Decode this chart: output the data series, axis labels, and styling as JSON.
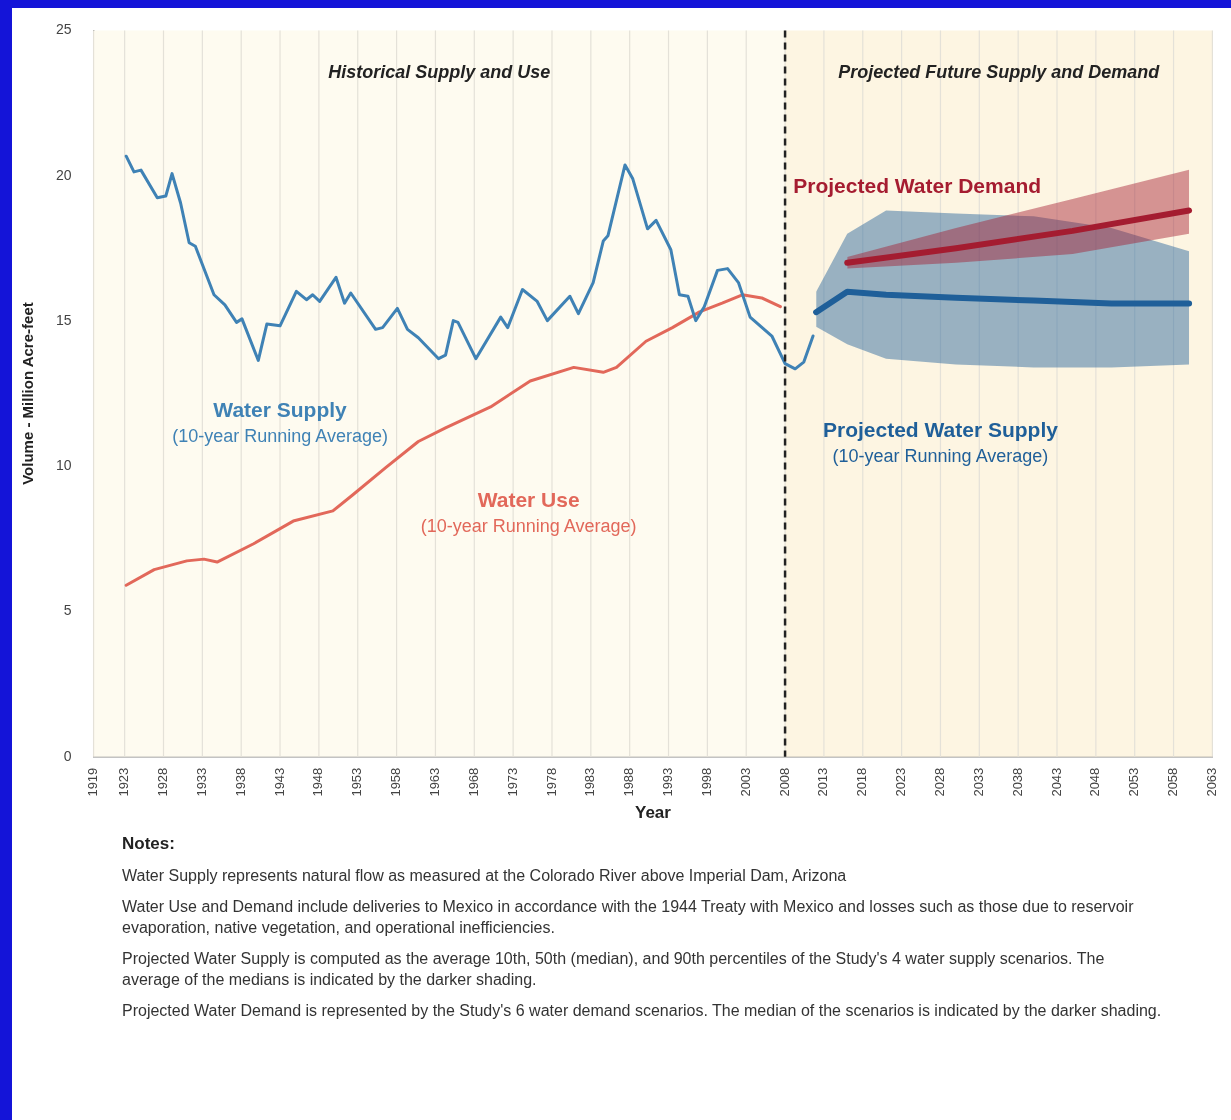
{
  "chart_data": {
    "type": "line",
    "xlabel": "Year",
    "ylabel": "Volume - Million Acre-feet",
    "xlim": [
      1919,
      2063
    ],
    "xticks": [
      1919,
      1923,
      1928,
      1933,
      1938,
      1943,
      1948,
      1953,
      1958,
      1963,
      1968,
      1973,
      1978,
      1983,
      1988,
      1993,
      1998,
      2003,
      2008,
      2013,
      2018,
      2023,
      2028,
      2033,
      2038,
      2043,
      2048,
      2053,
      2058,
      2063
    ],
    "ylim": [
      0,
      25
    ],
    "yticks": [
      0,
      5,
      10,
      15,
      20,
      25
    ],
    "grid": "x",
    "legend": false,
    "series": [
      {
        "name": "Water Supply",
        "color": "#3f82b5",
        "x": [
          1923.2,
          1924.2,
          1925.1,
          1927.2,
          1928.3,
          1929.1,
          1930.2,
          1931.3,
          1932.1,
          1934.5,
          1935.9,
          1937.4,
          1938.1,
          1940.2,
          1941.3,
          1943.0,
          1945.1,
          1946.4,
          1947.2,
          1948.1,
          1950.2,
          1951.3,
          1952.1,
          1955.3,
          1956.2,
          1958.1,
          1959.4,
          1960.8,
          1963.4,
          1964.3,
          1965.3,
          1965.9,
          1968.2,
          1971.4,
          1972.3,
          1974.2,
          1976.1,
          1977.4,
          1980.3,
          1981.4,
          1983.3,
          1984.6,
          1985.2,
          1987.4,
          1988.4,
          1990.3,
          1991.4,
          1993.3,
          1994.4,
          1995.5,
          1996.5,
          1997.6,
          1999.3,
          2000.6,
          2002.0,
          2003.5,
          2006.3,
          2008.0,
          2009.3,
          2010.4,
          2011.6
        ],
        "values": [
          20.67,
          20.13,
          20.19,
          19.24,
          19.3,
          20.07,
          19.06,
          17.69,
          17.57,
          15.9,
          15.55,
          14.95,
          15.07,
          13.64,
          14.89,
          14.83,
          16.02,
          15.73,
          15.9,
          15.67,
          16.5,
          15.61,
          15.96,
          14.71,
          14.77,
          15.43,
          14.71,
          14.42,
          13.7,
          13.82,
          15.01,
          14.95,
          13.7,
          15.13,
          14.77,
          16.08,
          15.67,
          15.01,
          15.85,
          15.25,
          16.32,
          17.75,
          17.93,
          20.37,
          19.89,
          18.17,
          18.46,
          17.45,
          15.9,
          15.85,
          15.01,
          15.49,
          16.74,
          16.8,
          16.32,
          15.13,
          14.48,
          13.53,
          13.35,
          13.58,
          14.48
        ]
      },
      {
        "name": "Water Use",
        "color": "#e2685a",
        "x": [
          1923.2,
          1926.8,
          1931.0,
          1933.2,
          1934.9,
          1939.6,
          1944.7,
          1949.8,
          1952.3,
          1956.6,
          1960.8,
          1964.3,
          1970.1,
          1975.2,
          1980.8,
          1984.6,
          1986.3,
          1990.1,
          1993.5,
          1997.0,
          1999.9,
          2002.5,
          2005.0,
          2007.4
        ],
        "values": [
          5.9,
          6.44,
          6.74,
          6.8,
          6.7,
          7.33,
          8.11,
          8.46,
          9.0,
          9.95,
          10.85,
          11.32,
          12.04,
          12.93,
          13.4,
          13.23,
          13.4,
          14.3,
          14.77,
          15.31,
          15.61,
          15.9,
          15.79,
          15.49
        ]
      },
      {
        "name": "Projected Water Demand",
        "color": "#a51c30",
        "x": [
          2016,
          2030,
          2045,
          2060
        ],
        "values": [
          17.0,
          17.5,
          18.1,
          18.8
        ],
        "lower": [
          16.8,
          17.0,
          17.3,
          18.0
        ],
        "upper": [
          17.2,
          18.2,
          19.2,
          20.2
        ]
      },
      {
        "name": "Projected Water Supply",
        "color": "#1f5f99",
        "x": [
          2012,
          2016,
          2021,
          2030,
          2040,
          2050,
          2060
        ],
        "values": [
          15.3,
          16.0,
          15.9,
          15.8,
          15.7,
          15.6,
          15.6
        ],
        "lower": [
          14.8,
          14.2,
          13.7,
          13.5,
          13.4,
          13.4,
          13.5
        ],
        "upper": [
          16.0,
          18.0,
          18.8,
          18.7,
          18.6,
          18.2,
          17.4
        ]
      }
    ],
    "ref_lines": [
      {
        "axis": "x",
        "value": 2008,
        "color": "#222222",
        "line_style": "dashed"
      }
    ],
    "bands": [
      {
        "axis": "x",
        "from": 1919,
        "to": 2008,
        "label": "Historical Supply and Use",
        "color": "#fefbf0"
      },
      {
        "axis": "x",
        "from": 2008,
        "to": 2063,
        "label": "Projected Future Supply and Demand",
        "color": "#fdf5e2"
      }
    ],
    "annotations": [
      "(10-year Running Average)",
      "(10-year Running Average)",
      "(10-year Running Average)",
      "Notes:",
      "Water Supply represents natural flow as measured at the Colorado River above Imperial Dam, Arizona",
      "Water Use and Demand include deliveries to Mexico in accordance with the 1944 Treaty with Mexico and losses such as those due to reservoir evaporation, native vegetation, and operational inefficiencies.",
      "Projected Water Supply is computed as the average 10th, 50th (median), and 90th percentiles of the Study's 4 water supply scenarios. The average of the medians is indicated by the darker shading.",
      "Projected Water Demand is represented by the Study's 6 water demand scenarios. The median of the scenarios is indicated by the darker shading."
    ]
  }
}
